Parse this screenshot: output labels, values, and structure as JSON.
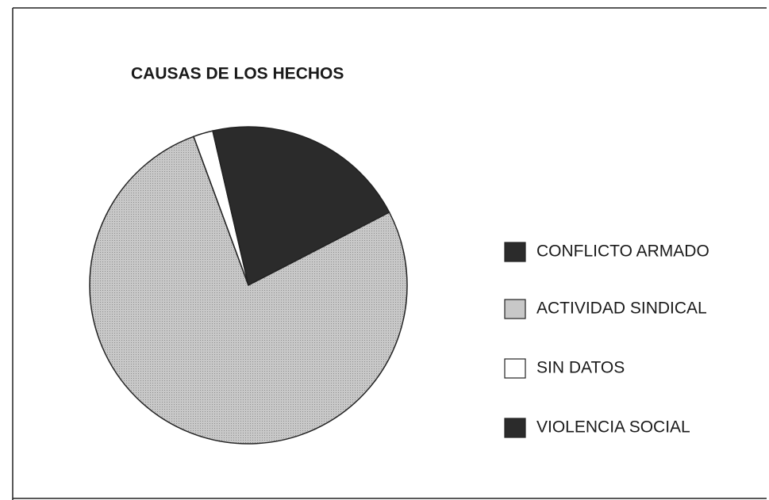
{
  "chart_data": {
    "type": "pie",
    "title": "CAUSAS DE LOS HECHOS",
    "categories": [
      "CONFLICTO ARMADO",
      "ACTIVIDAD SINDICAL",
      "SIN DATOS",
      "VIOLENCIA SOCIAL"
    ],
    "values": [
      21,
      77,
      2,
      0
    ],
    "colors": [
      "#2b2b2b",
      "#c8c8c8",
      "#ffffff",
      "#2b2b2b"
    ]
  }
}
